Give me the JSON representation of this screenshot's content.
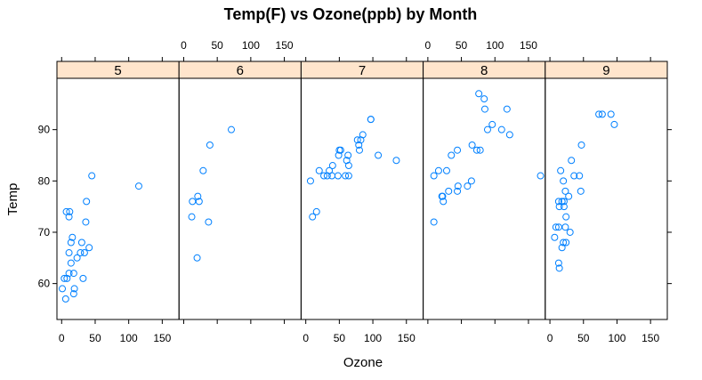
{
  "chart_data": {
    "type": "scatter",
    "title": "Temp(F) vs Ozone(ppb) by Month",
    "xlabel": "Ozone",
    "ylabel": "Temp",
    "xlim": [
      -7,
      175
    ],
    "ylim": [
      53,
      100
    ],
    "x_ticks": [
      0,
      50,
      100,
      150
    ],
    "y_ticks": [
      60,
      70,
      80,
      90
    ],
    "marker_color": "#0080ff",
    "strip_color": "#ffe5cc",
    "panels": [
      {
        "name": "5",
        "points": [
          [
            41,
            67
          ],
          [
            36,
            72
          ],
          [
            12,
            74
          ],
          [
            18,
            62
          ],
          [
            28,
            66
          ],
          [
            23,
            65
          ],
          [
            19,
            59
          ],
          [
            8,
            61
          ],
          [
            7,
            74
          ],
          [
            16,
            69
          ],
          [
            11,
            66
          ],
          [
            14,
            68
          ],
          [
            18,
            58
          ],
          [
            14,
            64
          ],
          [
            34,
            66
          ],
          [
            6,
            57
          ],
          [
            30,
            68
          ],
          [
            11,
            62
          ],
          [
            1,
            59
          ],
          [
            11,
            73
          ],
          [
            4,
            61
          ],
          [
            32,
            61
          ],
          [
            45,
            81
          ],
          [
            115,
            79
          ],
          [
            37,
            76
          ]
        ]
      },
      {
        "name": "6",
        "points": [
          [
            29,
            82
          ],
          [
            71,
            90
          ],
          [
            39,
            87
          ],
          [
            23,
            76
          ],
          [
            21,
            77
          ],
          [
            37,
            72
          ],
          [
            20,
            65
          ],
          [
            12,
            73
          ],
          [
            13,
            76
          ]
        ]
      },
      {
        "name": "7",
        "points": [
          [
            135,
            84
          ],
          [
            49,
            85
          ],
          [
            32,
            81
          ],
          [
            64,
            83
          ],
          [
            40,
            83
          ],
          [
            77,
            88
          ],
          [
            97,
            92
          ],
          [
            97,
            92
          ],
          [
            85,
            89
          ],
          [
            10,
            73
          ],
          [
            27,
            81
          ],
          [
            7,
            80
          ],
          [
            48,
            81
          ],
          [
            35,
            82
          ],
          [
            61,
            84
          ],
          [
            79,
            87
          ],
          [
            63,
            85
          ],
          [
            16,
            74
          ],
          [
            80,
            86
          ],
          [
            108,
            85
          ],
          [
            20,
            82
          ],
          [
            52,
            86
          ],
          [
            82,
            88
          ],
          [
            50,
            86
          ],
          [
            64,
            81
          ],
          [
            59,
            81
          ],
          [
            39,
            81
          ]
        ]
      },
      {
        "name": "8",
        "points": [
          [
            9,
            81
          ],
          [
            16,
            82
          ],
          [
            78,
            86
          ],
          [
            35,
            85
          ],
          [
            66,
            87
          ],
          [
            122,
            89
          ],
          [
            89,
            90
          ],
          [
            110,
            90
          ],
          [
            44,
            86
          ],
          [
            28,
            82
          ],
          [
            65,
            80
          ],
          [
            22,
            77
          ],
          [
            59,
            79
          ],
          [
            23,
            76
          ],
          [
            31,
            78
          ],
          [
            44,
            78
          ],
          [
            21,
            77
          ],
          [
            9,
            72
          ],
          [
            45,
            79
          ],
          [
            168,
            81
          ],
          [
            73,
            86
          ],
          [
            76,
            97
          ],
          [
            118,
            94
          ],
          [
            84,
            96
          ],
          [
            85,
            94
          ],
          [
            96,
            91
          ]
        ]
      },
      {
        "name": "9",
        "points": [
          [
            78,
            93
          ],
          [
            73,
            93
          ],
          [
            91,
            93
          ],
          [
            47,
            87
          ],
          [
            32,
            84
          ],
          [
            20,
            80
          ],
          [
            23,
            78
          ],
          [
            21,
            75
          ],
          [
            24,
            73
          ],
          [
            44,
            81
          ],
          [
            21,
            76
          ],
          [
            28,
            77
          ],
          [
            9,
            71
          ],
          [
            13,
            71
          ],
          [
            46,
            78
          ],
          [
            18,
            67
          ],
          [
            13,
            76
          ],
          [
            24,
            68
          ],
          [
            16,
            82
          ],
          [
            13,
            64
          ],
          [
            23,
            71
          ],
          [
            36,
            81
          ],
          [
            7,
            69
          ],
          [
            14,
            63
          ],
          [
            30,
            70
          ],
          [
            14,
            75
          ],
          [
            18,
            76
          ],
          [
            20,
            68
          ],
          [
            96,
            91
          ]
        ]
      }
    ]
  }
}
